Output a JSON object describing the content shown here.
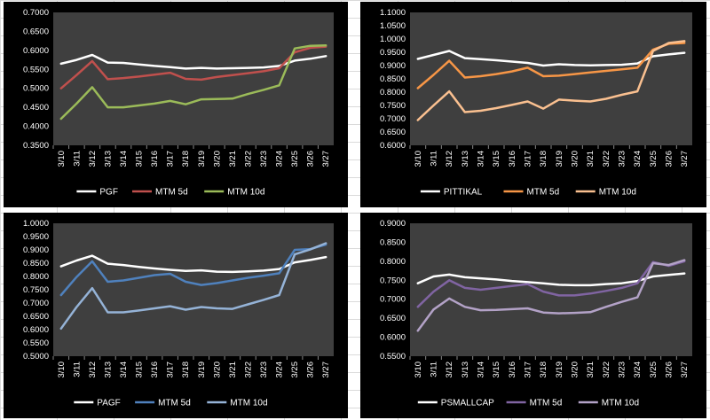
{
  "chart_data": [
    {
      "type": "line",
      "categories": [
        "3/10",
        "3/11",
        "3/12",
        "3/13",
        "3/14",
        "3/15",
        "3/16",
        "3/17",
        "3/18",
        "3/19",
        "3/20",
        "3/21",
        "3/22",
        "3/23",
        "3/24",
        "3/25",
        "3/26",
        "3/27"
      ],
      "y_ticks": [
        "0.7000",
        "0.6500",
        "0.6000",
        "0.5500",
        "0.5000",
        "0.4500",
        "0.4000",
        "0.3500"
      ],
      "ylim": [
        0.35,
        0.7
      ],
      "series": [
        {
          "name": "PGF",
          "color": "#ffffff",
          "values": [
            0.565,
            0.575,
            0.588,
            0.568,
            0.567,
            0.563,
            0.559,
            0.556,
            0.552,
            0.554,
            0.552,
            0.553,
            0.554,
            0.555,
            0.559,
            0.573,
            0.578,
            0.585
          ]
        },
        {
          "name": "MTM 5d",
          "color": "#c0504d",
          "values": [
            0.5,
            0.535,
            0.572,
            0.524,
            0.527,
            0.531,
            0.536,
            0.541,
            0.525,
            0.523,
            0.53,
            0.535,
            0.54,
            0.545,
            0.553,
            0.595,
            0.607,
            0.61
          ]
        },
        {
          "name": "MTM 10d",
          "color": "#9bbb59",
          "values": [
            0.42,
            0.46,
            0.503,
            0.45,
            0.45,
            0.455,
            0.46,
            0.467,
            0.458,
            0.471,
            0.472,
            0.473,
            0.485,
            0.496,
            0.508,
            0.605,
            0.612,
            0.613
          ]
        }
      ]
    },
    {
      "type": "line",
      "categories": [
        "3/10",
        "3/11",
        "3/12",
        "3/13",
        "3/14",
        "3/15",
        "3/16",
        "3/17",
        "3/18",
        "3/19",
        "3/20",
        "3/21",
        "3/22",
        "3/23",
        "3/24",
        "3/25",
        "3/26",
        "3/27"
      ],
      "y_ticks": [
        "1.1000",
        "1.0500",
        "1.0000",
        "0.9500",
        "0.9000",
        "0.8500",
        "0.8000",
        "0.7500",
        "0.7000",
        "0.6500",
        "0.6000"
      ],
      "ylim": [
        0.6,
        1.1
      ],
      "series": [
        {
          "name": "PITTIKAL",
          "color": "#ffffff",
          "values": [
            0.925,
            0.94,
            0.955,
            0.928,
            0.924,
            0.92,
            0.915,
            0.91,
            0.9,
            0.905,
            0.902,
            0.901,
            0.902,
            0.903,
            0.908,
            0.935,
            0.942,
            0.948
          ]
        },
        {
          "name": "MTM 5d",
          "color": "#f79646",
          "values": [
            0.815,
            0.865,
            0.918,
            0.855,
            0.86,
            0.868,
            0.878,
            0.892,
            0.86,
            0.862,
            0.868,
            0.874,
            0.88,
            0.886,
            0.892,
            0.96,
            0.982,
            0.985
          ]
        },
        {
          "name": "MTM 10d",
          "color": "#fac090",
          "values": [
            0.695,
            0.75,
            0.803,
            0.725,
            0.73,
            0.74,
            0.752,
            0.765,
            0.738,
            0.772,
            0.768,
            0.765,
            0.775,
            0.79,
            0.803,
            0.955,
            0.985,
            0.992
          ]
        }
      ]
    },
    {
      "type": "line",
      "categories": [
        "3/10",
        "3/11",
        "3/12",
        "3/13",
        "3/14",
        "3/15",
        "3/16",
        "3/17",
        "3/18",
        "3/19",
        "3/20",
        "3/21",
        "3/22",
        "3/23",
        "3/24",
        "3/25",
        "3/26",
        "3/27"
      ],
      "y_ticks": [
        "1.0000",
        "0.9500",
        "0.9000",
        "0.8500",
        "0.8000",
        "0.7500",
        "0.7000",
        "0.6500",
        "0.6000",
        "0.5500",
        "0.5000"
      ],
      "ylim": [
        0.5,
        1.0
      ],
      "series": [
        {
          "name": "PAGF",
          "color": "#ffffff",
          "values": [
            0.838,
            0.86,
            0.878,
            0.848,
            0.843,
            0.836,
            0.83,
            0.825,
            0.821,
            0.823,
            0.818,
            0.817,
            0.819,
            0.822,
            0.828,
            0.853,
            0.862,
            0.873
          ]
        },
        {
          "name": "MTM 5d",
          "color": "#4f81bd",
          "values": [
            0.73,
            0.798,
            0.857,
            0.78,
            0.785,
            0.795,
            0.805,
            0.81,
            0.78,
            0.768,
            0.775,
            0.785,
            0.795,
            0.803,
            0.812,
            0.9,
            0.903,
            0.92
          ]
        },
        {
          "name": "MTM 10d",
          "color": "#95b3d7",
          "values": [
            0.604,
            0.685,
            0.756,
            0.665,
            0.665,
            0.672,
            0.68,
            0.688,
            0.675,
            0.685,
            0.68,
            0.678,
            0.695,
            0.712,
            0.73,
            0.883,
            0.902,
            0.925
          ]
        }
      ]
    },
    {
      "type": "line",
      "categories": [
        "3/10",
        "3/11",
        "3/12",
        "3/13",
        "3/14",
        "3/15",
        "3/16",
        "3/17",
        "3/18",
        "3/19",
        "3/20",
        "3/21",
        "3/22",
        "3/23",
        "3/24",
        "3/25",
        "3/26",
        "3/27"
      ],
      "y_ticks": [
        "0.9000",
        "0.8500",
        "0.8000",
        "0.7500",
        "0.7000",
        "0.6500",
        "0.6000",
        "0.5500"
      ],
      "ylim": [
        0.55,
        0.9
      ],
      "series": [
        {
          "name": "PSMALLCAP",
          "color": "#ffffff",
          "values": [
            0.742,
            0.76,
            0.765,
            0.758,
            0.755,
            0.752,
            0.748,
            0.745,
            0.742,
            0.738,
            0.737,
            0.737,
            0.74,
            0.742,
            0.748,
            0.76,
            0.764,
            0.768
          ]
        },
        {
          "name": "MTM 5d",
          "color": "#8064a2",
          "values": [
            0.68,
            0.72,
            0.75,
            0.73,
            0.725,
            0.73,
            0.735,
            0.74,
            0.72,
            0.71,
            0.71,
            0.715,
            0.722,
            0.73,
            0.742,
            0.798,
            0.788,
            0.8
          ]
        },
        {
          "name": "MTM 10d",
          "color": "#b3a2c7",
          "values": [
            0.617,
            0.673,
            0.702,
            0.68,
            0.671,
            0.672,
            0.674,
            0.676,
            0.665,
            0.663,
            0.664,
            0.666,
            0.68,
            0.693,
            0.705,
            0.795,
            0.79,
            0.803
          ]
        }
      ]
    }
  ]
}
